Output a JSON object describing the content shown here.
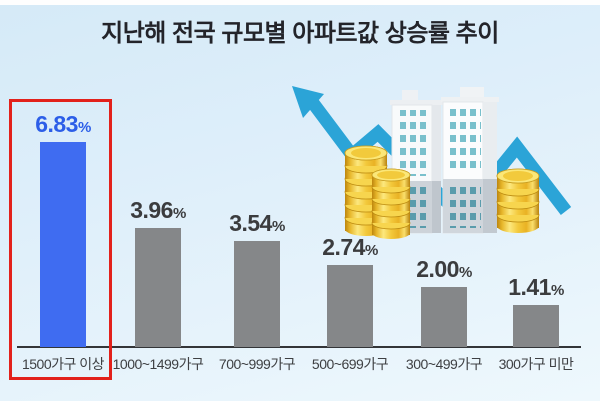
{
  "title": "지난해 전국 규모별 아파트값 상승률 추이",
  "chart_data": {
    "type": "bar",
    "title": "지난해 전국 규모별 아파트값 상승률 추이",
    "categories": [
      "1500가구 이상",
      "1000~1499가구",
      "700~999가구",
      "500~699가구",
      "300~499가구",
      "300가구 미만"
    ],
    "values": [
      6.83,
      3.96,
      3.54,
      2.74,
      2.0,
      1.41
    ],
    "value_labels": [
      "6.83",
      "3.96",
      "3.54",
      "2.74",
      "2.00",
      "1.41"
    ],
    "unit": "%",
    "xlabel": "",
    "ylabel": "",
    "ylim": [
      0,
      7.5
    ],
    "grid": false,
    "legend": false,
    "highlight_index": 0,
    "highlight_note": "first bar outlined with red box and colored blue"
  },
  "colors": {
    "highlight_bar": "#3f6cf1",
    "bar": "#858789",
    "highlight_value_text": "#2c5ee8",
    "value_text": "#3b3c3e",
    "label_text": "#3e4043",
    "axis": "#333538",
    "highlight_box_border": "#e2211b",
    "arrow": "#2ba4d7",
    "title_text": "#23242a"
  },
  "icons": {
    "illustration": "apartment-buildings-gold-coins-trend-arrows"
  }
}
